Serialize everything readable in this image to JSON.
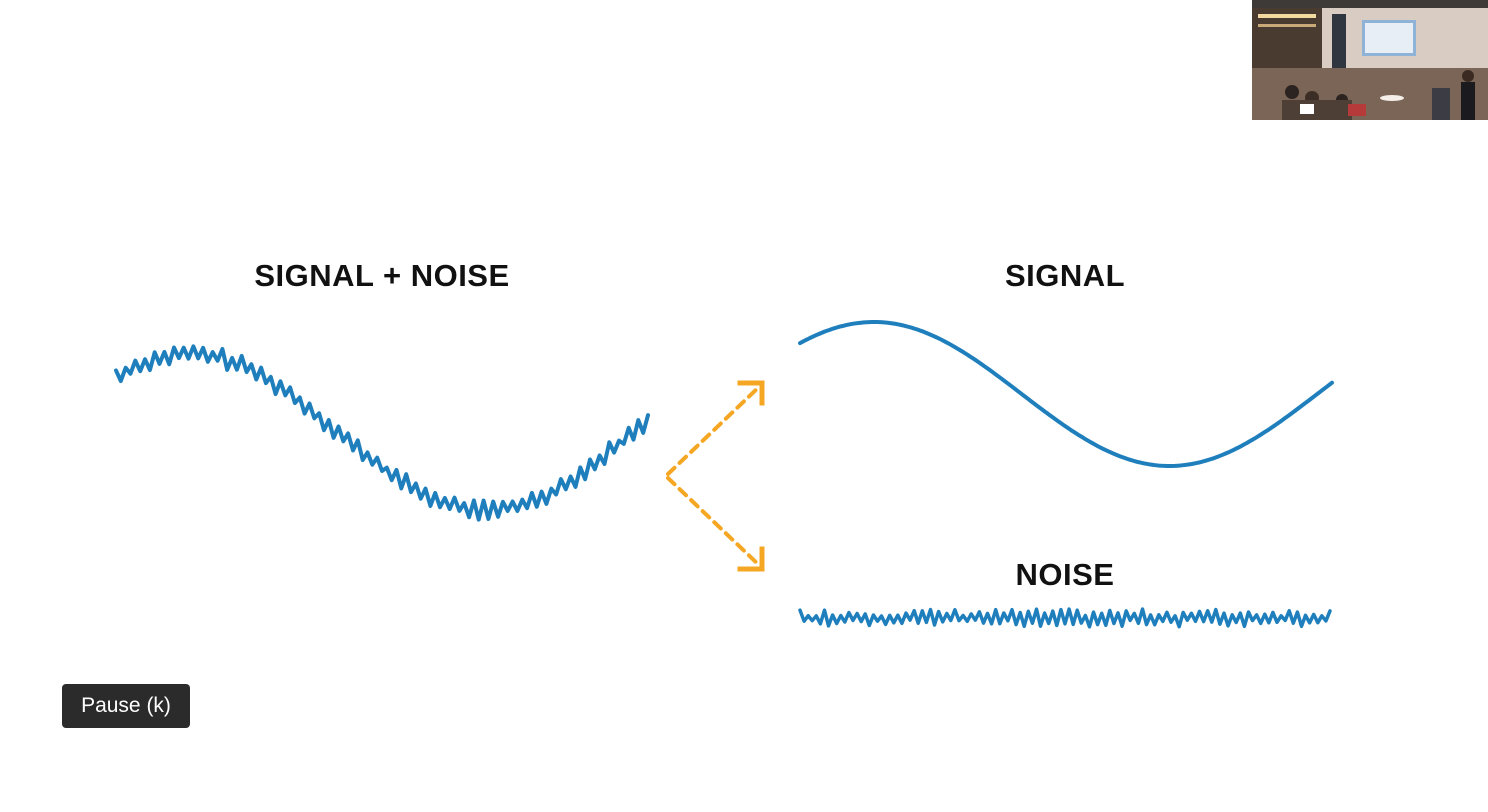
{
  "slide": {
    "combined_title": "SIGNAL + NOISE",
    "signal_title": "SIGNAL",
    "noise_title": "NOISE"
  },
  "colors": {
    "wave": "#1f7fbd",
    "arrow": "#f5a623",
    "tooltip_bg": "#2b2b2b"
  },
  "icons": {
    "arrow_up": "dashed-arrow-up-right-icon",
    "arrow_down": "dashed-arrow-down-right-icon"
  },
  "player": {
    "tooltip": "Pause (k)"
  },
  "pip_video": {
    "description_icon": "speaker-video-thumbnail"
  }
}
